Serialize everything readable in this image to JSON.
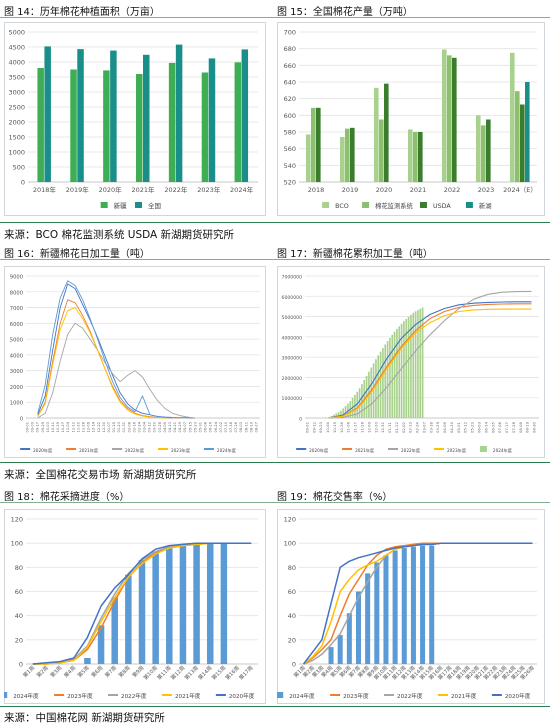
{
  "captions": {
    "fig14": "图 14：历年棉花种植面积（万亩）",
    "fig15": "图 15：全国棉花产量（万吨）",
    "fig16": "图 16：新疆棉花日加工量（吨）",
    "fig17": "图 17：新疆棉花累积加工量（吨）",
    "fig18": "图 18：棉花采摘进度（%）",
    "fig19": "图 19：棉花交售率（%）"
  },
  "sources": {
    "row1": "来源：BCO 棉花监测系统 USDA 新湖期货研究所",
    "row2": "来源：全国棉花交易市场  新湖期货研究所",
    "row3": "来源：中国棉花网  新湖期货研究所"
  },
  "chart_data": [
    {
      "id": "fig14",
      "type": "bar",
      "categories": [
        "2018年",
        "2019年",
        "2020年",
        "2021年",
        "2022年",
        "2023年",
        "2024年"
      ],
      "series": [
        {
          "name": "新疆",
          "color": "#3dae54",
          "values": [
            3800,
            3750,
            3720,
            3600,
            3970,
            3650,
            3990
          ]
        },
        {
          "name": "全国",
          "color": "#1a8f8a",
          "values": [
            4520,
            4430,
            4380,
            4240,
            4580,
            4120,
            4420
          ]
        }
      ],
      "ylim": [
        0,
        5000
      ],
      "yticks": [
        "0",
        "500",
        "1000",
        "1500",
        "2000",
        "2500",
        "3000",
        "3500",
        "4000",
        "4500",
        "5000"
      ],
      "legend": "bottom"
    },
    {
      "id": "fig15",
      "type": "bar",
      "categories": [
        "2018",
        "2019",
        "2020",
        "2021",
        "2022",
        "2023",
        "2024（E）"
      ],
      "series": [
        {
          "name": "BCO",
          "color": "#a9d18e",
          "values": [
            577,
            574,
            633,
            583,
            679,
            600,
            675
          ]
        },
        {
          "name": "棉花监测系统",
          "color": "#8cc06f",
          "values": [
            609,
            584,
            595,
            580,
            672,
            588,
            629
          ]
        },
        {
          "name": "USDA",
          "color": "#3a7d2c",
          "values": [
            609,
            585,
            638,
            580,
            669,
            595,
            613
          ]
        },
        {
          "name": "新湖",
          "color": "#1a8f8a",
          "values": [
            null,
            null,
            null,
            null,
            null,
            null,
            640
          ]
        }
      ],
      "ylim": [
        520,
        700
      ],
      "yticks": [
        "520",
        "540",
        "560",
        "580",
        "600",
        "620",
        "640",
        "660",
        "680",
        "700"
      ],
      "legend": "bottom"
    },
    {
      "id": "fig16",
      "type": "line",
      "x_count": 60,
      "x_labels": [
        "09-01",
        "09-09",
        "09-17",
        "09-25",
        "10-03",
        "10-11",
        "10-19",
        "10-27",
        "11-04",
        "11-12",
        "11-20",
        "11-28",
        "12-06",
        "12-14",
        "12-22",
        "12-30",
        "01-07",
        "01-15",
        "01-23",
        "01-31",
        "02-08",
        "02-16",
        "02-24",
        "03-04",
        "03-12",
        "03-20",
        "03-28",
        "04-05",
        "04-13",
        "04-21",
        "04-29",
        "05-07",
        "05-15",
        "05-23",
        "05-31",
        "06-08",
        "06-16",
        "06-24",
        "07-02",
        "07-10",
        "07-18",
        "07-26",
        "08-03",
        "08-11",
        "08-19",
        "08-27"
      ],
      "ylim": [
        0,
        9000
      ],
      "yticks": [
        "0",
        "1000",
        "2000",
        "3000",
        "4000",
        "5000",
        "6000",
        "7000",
        "8000",
        "9000"
      ],
      "series": [
        {
          "name": "2020年度",
          "color": "#4472c4",
          "values": [
            200,
            1400,
            4300,
            7000,
            8500,
            8200,
            7200,
            6200,
            5100,
            3900,
            2700,
            1600,
            900,
            500,
            300,
            200,
            100,
            60,
            30,
            20,
            10,
            0
          ]
        },
        {
          "name": "2021年度",
          "color": "#ed7d31",
          "values": [
            100,
            1000,
            3600,
            6000,
            7500,
            7300,
            6500,
            5500,
            4300,
            3100,
            2000,
            1100,
            600,
            300,
            150,
            80,
            40,
            20,
            10,
            0
          ]
        },
        {
          "name": "2022年度",
          "color": "#a5a5a5",
          "values": [
            0,
            300,
            1600,
            3600,
            5300,
            6000,
            5700,
            5000,
            4300,
            3500,
            2800,
            2300,
            2700,
            3000,
            2600,
            1800,
            1100,
            600,
            300,
            150,
            60,
            0
          ]
        },
        {
          "name": "2023年度",
          "color": "#ffc000",
          "values": [
            100,
            900,
            3400,
            5600,
            6800,
            7000,
            6300,
            5400,
            4300,
            3100,
            1900,
            1000,
            500,
            250,
            120,
            50,
            20,
            0
          ]
        },
        {
          "name": "2024年度",
          "color": "#5b9bd5",
          "values": [
            300,
            2100,
            5300,
            7600,
            8700,
            8400,
            7500,
            6300,
            5000,
            3600,
            2300,
            1300,
            700,
            400,
            1400,
            200,
            100,
            40,
            0
          ]
        }
      ],
      "legend": "bottom"
    },
    {
      "id": "fig17",
      "type": "line",
      "ylim": [
        0,
        7000000
      ],
      "yticks": [
        "0",
        "1000000",
        "2000000",
        "3000000",
        "4000000",
        "5000000",
        "6000000",
        "7000000"
      ],
      "x_labels": [
        "09-01",
        "09-12",
        "09-23",
        "10-04",
        "10-15",
        "10-26",
        "11-06",
        "11-17",
        "11-28",
        "12-09",
        "12-20",
        "12-31",
        "01-11",
        "01-22",
        "02-02",
        "02-13",
        "02-24",
        "03-07",
        "03-18",
        "03-29",
        "04-09",
        "04-20",
        "05-01",
        "05-12",
        "05-23",
        "06-03",
        "06-14",
        "06-25",
        "07-06",
        "07-17",
        "07-28",
        "08-08",
        "08-19",
        "08-30"
      ],
      "series": [
        {
          "name": "2020年度",
          "color": "#4472c4",
          "values": [
            0,
            150000,
            700000,
            1700000,
            2900000,
            3900000,
            4600000,
            5100000,
            5400000,
            5580000,
            5660000,
            5700000,
            5720000,
            5730000,
            5730000
          ]
        },
        {
          "name": "2021年度",
          "color": "#ed7d31",
          "values": [
            0,
            100000,
            500000,
            1400000,
            2500000,
            3500000,
            4300000,
            4900000,
            5250000,
            5450000,
            5550000,
            5600000,
            5620000,
            5630000,
            5630000
          ]
        },
        {
          "name": "2022年度",
          "color": "#a5a5a5",
          "values": [
            0,
            30000,
            200000,
            700000,
            1500000,
            2400000,
            3300000,
            4100000,
            4800000,
            5400000,
            5850000,
            6100000,
            6200000,
            6230000,
            6240000
          ]
        },
        {
          "name": "2023年度",
          "color": "#ffc000",
          "values": [
            0,
            80000,
            450000,
            1300000,
            2400000,
            3400000,
            4200000,
            4700000,
            5050000,
            5250000,
            5330000,
            5360000,
            5370000,
            5370000,
            5370000
          ]
        },
        {
          "name": "2024年度",
          "color": "#a9d18e",
          "type": "bar",
          "values": [
            100000,
            350000,
            800000,
            1400000,
            2200000,
            3000000,
            3700000,
            4300000,
            4800000,
            5200000,
            5450000
          ]
        }
      ],
      "legend": "bottom"
    },
    {
      "id": "fig18",
      "type": "line",
      "categories": [
        "第1周",
        "第2周",
        "第3周",
        "第4周",
        "第5周",
        "第6周",
        "第7周",
        "第8周",
        "第9周",
        "第10周",
        "第11周",
        "第12周",
        "第13周",
        "第14周",
        "第15周",
        "第16周",
        "第17周"
      ],
      "ylim": [
        0,
        120
      ],
      "yticks": [
        "0",
        "20",
        "40",
        "60",
        "80",
        "100",
        "120"
      ],
      "series": [
        {
          "name": "2024年度",
          "color": "#5b9bd5",
          "type": "bar",
          "values": [
            null,
            null,
            null,
            null,
            5,
            32,
            55,
            74,
            86,
            93,
            97,
            99,
            100,
            100,
            100,
            null,
            null
          ]
        },
        {
          "name": "2023年度",
          "color": "#ed7d31",
          "values": [
            0,
            0,
            1,
            3,
            12,
            30,
            52,
            72,
            84,
            92,
            96,
            98,
            99,
            100,
            100,
            100,
            100
          ]
        },
        {
          "name": "2022年度",
          "color": "#a5a5a5",
          "values": [
            0,
            0,
            1,
            4,
            15,
            38,
            58,
            75,
            86,
            93,
            97,
            99,
            100,
            100,
            100,
            100,
            100
          ]
        },
        {
          "name": "2021年度",
          "color": "#ffc000",
          "values": [
            0,
            0,
            1,
            3,
            14,
            35,
            55,
            72,
            83,
            91,
            96,
            98,
            99,
            100,
            100,
            100,
            100
          ]
        },
        {
          "name": "2020年度",
          "color": "#4472c4",
          "values": [
            0,
            1,
            2,
            5,
            22,
            48,
            63,
            74,
            87,
            95,
            98,
            99,
            100,
            100,
            100,
            100,
            100
          ]
        }
      ],
      "legend": "bottom"
    },
    {
      "id": "fig19",
      "type": "line",
      "categories": [
        "第1周",
        "第2周",
        "第3周",
        "第4周",
        "第5周",
        "第6周",
        "第7周",
        "第8周",
        "第9周",
        "第10周",
        "第11周",
        "第12周",
        "第13周",
        "第14周",
        "第15周",
        "第16周",
        "第17周",
        "第18周",
        "第19周",
        "第20周",
        "第21周",
        "第22周",
        "第23周",
        "第24周",
        "第25周",
        "第26周"
      ],
      "ylim": [
        0,
        120
      ],
      "yticks": [
        "0",
        "20",
        "40",
        "60",
        "80",
        "100",
        "120"
      ],
      "series": [
        {
          "name": "2024年度",
          "color": "#5b9bd5",
          "type": "bar",
          "values": [
            null,
            null,
            null,
            14,
            24,
            42,
            60,
            75,
            84,
            90,
            94,
            96,
            97,
            98,
            98,
            null,
            null,
            null,
            null,
            null,
            null,
            null,
            null,
            null,
            null,
            null
          ]
        },
        {
          "name": "2023年度",
          "color": "#ed7d31",
          "values": [
            0,
            5,
            12,
            20,
            40,
            58,
            70,
            82,
            90,
            95,
            97,
            98,
            99,
            100,
            100,
            100,
            100,
            100,
            100,
            100,
            100,
            100,
            100,
            100,
            100,
            100
          ]
        },
        {
          "name": "2022年度",
          "color": "#a5a5a5",
          "values": [
            0,
            3,
            8,
            16,
            25,
            40,
            55,
            68,
            80,
            90,
            95,
            97,
            98,
            99,
            99,
            100,
            100,
            100,
            100,
            100,
            100,
            100,
            100,
            100,
            100,
            100
          ]
        },
        {
          "name": "2021年度",
          "color": "#ffc000",
          "values": [
            0,
            6,
            15,
            35,
            60,
            70,
            78,
            82,
            85,
            90,
            95,
            97,
            98,
            99,
            99,
            100,
            100,
            100,
            100,
            100,
            100,
            100,
            100,
            100,
            100,
            100
          ]
        },
        {
          "name": "2020年度",
          "color": "#4472c4",
          "values": [
            0,
            10,
            20,
            50,
            80,
            85,
            88,
            90,
            92,
            94,
            96,
            97,
            98,
            99,
            99,
            100,
            100,
            100,
            100,
            100,
            100,
            100,
            100,
            100,
            100,
            100
          ]
        }
      ],
      "legend": "bottom"
    }
  ]
}
